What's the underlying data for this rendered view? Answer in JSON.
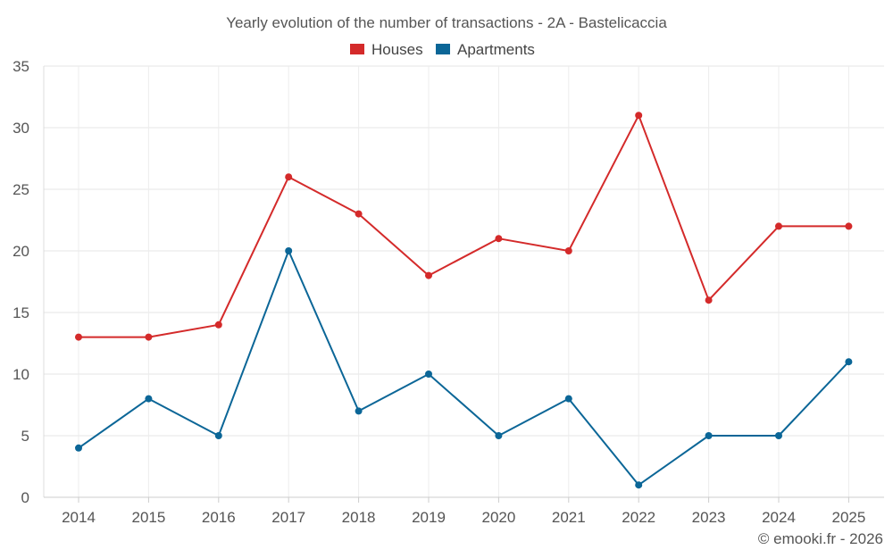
{
  "chart_data": {
    "type": "line",
    "title": "Yearly evolution of the number of transactions - 2A - Bastelicaccia",
    "categories": [
      "2014",
      "2015",
      "2016",
      "2017",
      "2018",
      "2019",
      "2020",
      "2021",
      "2022",
      "2023",
      "2024",
      "2025"
    ],
    "series": [
      {
        "name": "Houses",
        "color": "#d42a2a",
        "values": [
          13,
          13,
          14,
          26,
          23,
          18,
          21,
          20,
          31,
          16,
          22,
          22
        ]
      },
      {
        "name": "Apartments",
        "color": "#0b6697",
        "values": [
          4,
          8,
          5,
          20,
          7,
          10,
          5,
          8,
          1,
          5,
          5,
          11
        ]
      }
    ],
    "xlabel": "",
    "ylabel": "",
    "ylim": [
      0,
      35
    ],
    "yticks": [
      "0",
      "5",
      "10",
      "15",
      "20",
      "25",
      "30",
      "35"
    ],
    "grid": true,
    "legend_position": "top-center"
  },
  "credit": "© emooki.fr - 2026"
}
